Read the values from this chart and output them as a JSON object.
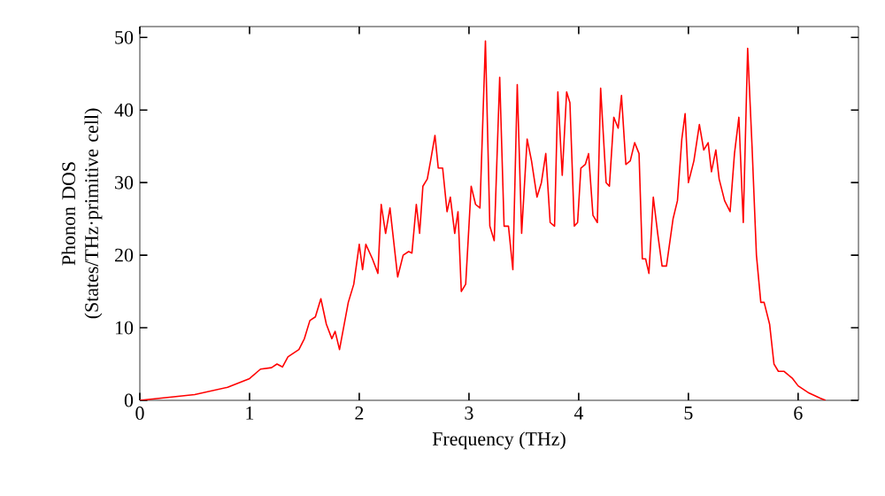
{
  "chart_data": {
    "type": "line",
    "xlabel": "Frequency (THz)",
    "ylabel": "Phonon DOS (States/THz·primitive cell)",
    "xlim": [
      0,
      6.55
    ],
    "ylim": [
      0,
      51.5
    ],
    "xticks": [
      0,
      1,
      2,
      3,
      4,
      5,
      6
    ],
    "yticks": [
      0,
      10,
      20,
      30,
      40,
      50
    ],
    "marker": "none",
    "line_style": "solid",
    "series": [
      {
        "color": "#ff0000",
        "x": [
          0,
          0.5,
          0.8,
          1.0,
          1.1,
          1.2,
          1.25,
          1.3,
          1.35,
          1.45,
          1.5,
          1.55,
          1.6,
          1.65,
          1.7,
          1.75,
          1.78,
          1.82,
          1.9,
          1.95,
          2.0,
          2.03,
          2.06,
          2.12,
          2.17,
          2.2,
          2.24,
          2.28,
          2.35,
          2.4,
          2.45,
          2.48,
          2.52,
          2.55,
          2.58,
          2.62,
          2.65,
          2.69,
          2.72,
          2.76,
          2.8,
          2.83,
          2.87,
          2.9,
          2.93,
          2.97,
          3.02,
          3.06,
          3.1,
          3.15,
          3.19,
          3.23,
          3.28,
          3.32,
          3.36,
          3.4,
          3.44,
          3.48,
          3.53,
          3.57,
          3.62,
          3.66,
          3.7,
          3.74,
          3.78,
          3.81,
          3.85,
          3.89,
          3.92,
          3.96,
          3.99,
          4.02,
          4.06,
          4.09,
          4.13,
          4.17,
          4.2,
          4.25,
          4.28,
          4.32,
          4.36,
          4.39,
          4.43,
          4.47,
          4.51,
          4.55,
          4.58,
          4.61,
          4.64,
          4.68,
          4.72,
          4.76,
          4.8,
          4.86,
          4.9,
          4.94,
          4.97,
          5.0,
          5.05,
          5.1,
          5.14,
          5.18,
          5.21,
          5.25,
          5.28,
          5.33,
          5.38,
          5.42,
          5.46,
          5.5,
          5.54,
          5.58,
          5.62,
          5.66,
          5.69,
          5.74,
          5.78,
          5.82,
          5.87,
          5.95,
          6.0,
          6.1,
          6.2,
          6.25
        ],
        "values": [
          0,
          0.8,
          1.8,
          3,
          4.3,
          4.5,
          5,
          4.6,
          6,
          7,
          8.5,
          11,
          11.5,
          14,
          10.5,
          8.5,
          9.5,
          7,
          13.5,
          16,
          21.5,
          18,
          21.5,
          19.5,
          17.5,
          27,
          23,
          26.5,
          17,
          20,
          20.5,
          20.3,
          27,
          23,
          29.5,
          30.5,
          33,
          36.5,
          32,
          32,
          26,
          28,
          23,
          26,
          15,
          16,
          29.5,
          27,
          26.5,
          49.5,
          24,
          22,
          44.5,
          24,
          24,
          18,
          43.5,
          23,
          36,
          33,
          28,
          30,
          34,
          24.5,
          24,
          42.5,
          31,
          42.5,
          41,
          24,
          24.5,
          32,
          32.5,
          34,
          25.5,
          24.5,
          43,
          30,
          29.5,
          39,
          37.5,
          42,
          32.5,
          33,
          35.5,
          34,
          19.5,
          19.5,
          17.5,
          28,
          23,
          18.5,
          18.5,
          25,
          27.5,
          36,
          39.5,
          30,
          33,
          38,
          34.5,
          35.5,
          31.5,
          34.5,
          30.5,
          27.5,
          26,
          34,
          39,
          24.5,
          48.5,
          35,
          20,
          13.5,
          13.5,
          10.5,
          5,
          4,
          4,
          3,
          2,
          1,
          0.3,
          0
        ]
      }
    ]
  }
}
